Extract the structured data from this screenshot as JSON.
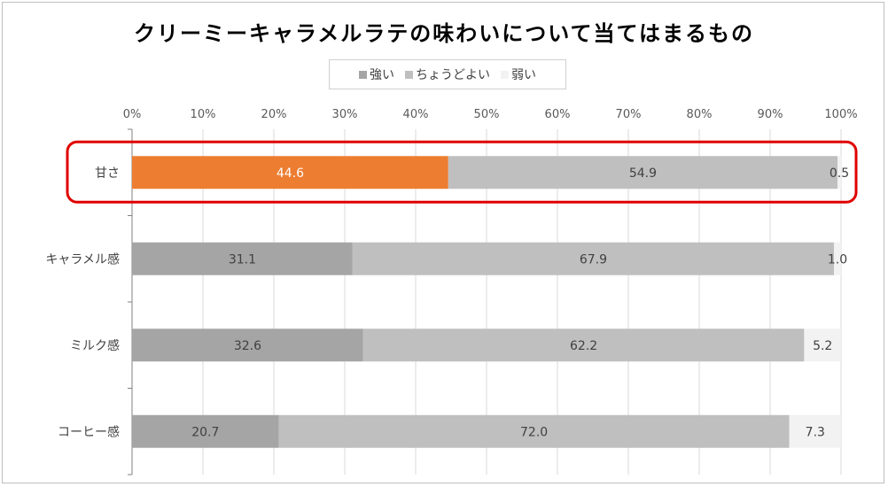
{
  "chart_data": {
    "type": "bar",
    "orientation": "horizontal",
    "stacked": true,
    "title": "クリーミーキャラメルラテの味わいについて当てはまるもの",
    "categories": [
      "甘さ",
      "キャラメル感",
      "ミルク感",
      "コーヒー感"
    ],
    "series": [
      {
        "name": "強い",
        "values": [
          44.6,
          31.1,
          32.6,
          20.7
        ],
        "color": "#a5a5a5"
      },
      {
        "name": "ちょうどよい",
        "values": [
          54.9,
          67.9,
          62.2,
          72.0
        ],
        "color": "#bfbfbf"
      },
      {
        "name": "弱い",
        "values": [
          0.5,
          1.0,
          5.2,
          7.3
        ],
        "color": "#f2f2f2"
      }
    ],
    "data_labels": [
      [
        "44.6",
        "54.9",
        "0.5"
      ],
      [
        "31.1",
        "67.9",
        "1.0"
      ],
      [
        "32.6",
        "62.2",
        "5.2"
      ],
      [
        "20.7",
        "72.0",
        "7.3"
      ]
    ],
    "x_ticks": [
      "0%",
      "10%",
      "20%",
      "30%",
      "40%",
      "50%",
      "60%",
      "70%",
      "80%",
      "90%",
      "100%"
    ],
    "xlim": [
      0,
      100
    ],
    "grid": true,
    "legend_position": "top",
    "highlight": {
      "category": "甘さ",
      "series": "強い",
      "color": "#ed7d31",
      "outline_color": "#e00000"
    }
  }
}
